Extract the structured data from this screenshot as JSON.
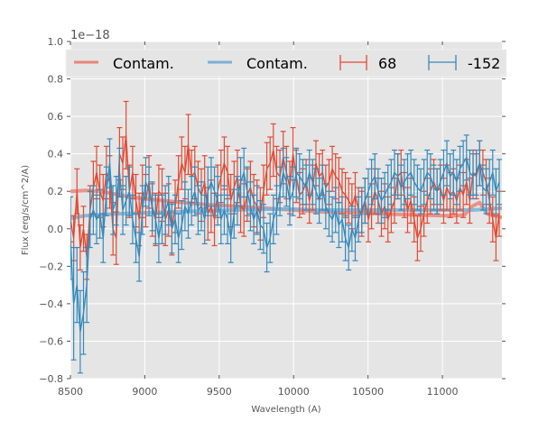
{
  "chart_data": {
    "type": "line",
    "title": "",
    "xlabel": "Wavelength (A)",
    "ylabel": "Flux (erg/s/cm^2/A)",
    "y_offset_label": "1e−18",
    "xlim": [
      8500,
      11400
    ],
    "ylim": [
      -0.8,
      1.0
    ],
    "x_ticks": [
      8500,
      9000,
      9500,
      10000,
      10500,
      11000
    ],
    "x_tick_labels": [
      "8500",
      "9000",
      "9500",
      "10000",
      "10500",
      "11000"
    ],
    "y_ticks": [
      -0.8,
      -0.6,
      -0.4,
      -0.2,
      0.0,
      0.2,
      0.4,
      0.6,
      0.8,
      1.0
    ],
    "y_tick_labels": [
      "−0.8",
      "−0.6",
      "−0.4",
      "−0.2",
      "0.0",
      "0.2",
      "0.4",
      "0.6",
      "0.8",
      "1.0"
    ],
    "grid": true,
    "legend_position": "top (full width, 4 columns)",
    "colors": {
      "red": "#E24A33",
      "blue": "#348ABD",
      "red_contam": "#E8857A",
      "blue_contam": "#7DB0D4",
      "background": "#E5E5E5",
      "grid": "#FFFFFF"
    },
    "legend": [
      {
        "label": "Contam.",
        "style": "line",
        "color": "#E8857A"
      },
      {
        "label": "Contam.",
        "style": "line",
        "color": "#7DB0D4"
      },
      {
        "label": "68",
        "style": "errorbar",
        "color": "#E24A33"
      },
      {
        "label": "-152",
        "style": "errorbar",
        "color": "#348ABD"
      }
    ],
    "series": [
      {
        "name": "Contam. (68)",
        "kind": "line",
        "color": "#E8857A",
        "x": [
          8500,
          8600,
          8700,
          8800,
          8900,
          9000,
          9200,
          9400,
          9600,
          9800,
          10000,
          10200,
          10400,
          10600,
          10800,
          11000,
          11100,
          11150,
          11200,
          11250,
          11300,
          11400
        ],
        "y": [
          0.2,
          0.205,
          0.2,
          0.185,
          0.17,
          0.16,
          0.145,
          0.13,
          0.12,
          0.11,
          0.1,
          0.09,
          0.085,
          0.08,
          0.075,
          0.07,
          0.07,
          0.075,
          0.12,
          0.14,
          0.08,
          0.06
        ]
      },
      {
        "name": "Contam. (-152)",
        "kind": "line",
        "color": "#7DB0D4",
        "x": [
          8500,
          8600,
          8700,
          8800,
          9000,
          9200,
          9400,
          9600,
          9800,
          10000,
          10200,
          10400,
          10600,
          10800,
          11000,
          11200,
          11400
        ],
        "y": [
          0.055,
          0.07,
          0.075,
          0.08,
          0.085,
          0.09,
          0.095,
          0.1,
          0.105,
          0.105,
          0.1,
          0.1,
          0.1,
          0.1,
          0.1,
          0.1,
          0.11
        ]
      },
      {
        "name": "68",
        "kind": "errorbar",
        "color": "#E24A33",
        "x": [
          8500,
          8522,
          8544,
          8566,
          8588,
          8610,
          8632,
          8654,
          8676,
          8698,
          8720,
          8742,
          8764,
          8786,
          8808,
          8830,
          8852,
          8874,
          8896,
          8918,
          8940,
          8962,
          8984,
          9006,
          9028,
          9050,
          9072,
          9094,
          9116,
          9138,
          9160,
          9182,
          9204,
          9226,
          9248,
          9270,
          9292,
          9314,
          9336,
          9358,
          9380,
          9402,
          9424,
          9446,
          9468,
          9490,
          9512,
          9534,
          9556,
          9578,
          9600,
          9622,
          9644,
          9666,
          9688,
          9710,
          9732,
          9754,
          9776,
          9798,
          9820,
          9842,
          9864,
          9886,
          9908,
          9930,
          9952,
          9974,
          9996,
          10018,
          10040,
          10062,
          10084,
          10106,
          10128,
          10150,
          10172,
          10194,
          10216,
          10238,
          10260,
          10282,
          10304,
          10326,
          10348,
          10370,
          10392,
          10414,
          10436,
          10458,
          10480,
          10502,
          10524,
          10546,
          10568,
          10590,
          10612,
          10634,
          10656,
          10678,
          10700,
          10722,
          10744,
          10766,
          10788,
          10810,
          10832,
          10854,
          10876,
          10898,
          10920,
          10942,
          10964,
          10986,
          11008,
          11030,
          11052,
          11074,
          11096,
          11118,
          11140,
          11162,
          11184,
          11206,
          11228,
          11250,
          11272,
          11294,
          11316,
          11338,
          11360,
          11382
        ],
        "y": [
          0.05,
          -0.05,
          0.2,
          -0.1,
          0.0,
          -0.15,
          0.1,
          0.22,
          0.3,
          0.2,
          0.15,
          0.3,
          0.25,
          0.0,
          -0.05,
          0.4,
          0.35,
          0.5,
          0.2,
          0.3,
          0.15,
          0.05,
          0.2,
          0.15,
          0.25,
          0.1,
          0.05,
          0.2,
          0.18,
          0.05,
          0.1,
          0.0,
          0.12,
          0.25,
          0.35,
          0.3,
          0.45,
          0.28,
          0.3,
          0.22,
          0.18,
          0.25,
          0.08,
          0.12,
          0.05,
          0.2,
          0.28,
          0.35,
          0.3,
          0.15,
          0.22,
          0.28,
          0.12,
          0.1,
          0.18,
          0.22,
          0.15,
          0.12,
          0.08,
          0.2,
          0.32,
          0.35,
          0.42,
          0.3,
          0.28,
          0.38,
          0.3,
          0.22,
          0.4,
          0.28,
          0.18,
          0.2,
          0.25,
          0.15,
          0.22,
          0.35,
          0.28,
          0.3,
          0.22,
          0.25,
          0.32,
          0.28,
          0.26,
          0.2,
          0.18,
          0.15,
          0.12,
          0.18,
          0.1,
          0.08,
          0.15,
          0.05,
          0.12,
          0.2,
          0.15,
          0.08,
          0.12,
          0.05,
          0.1,
          0.15,
          0.28,
          0.3,
          0.18,
          0.1,
          0.15,
          0.05,
          -0.05,
          0.0,
          0.08,
          0.15,
          0.2,
          0.25,
          0.2,
          0.22,
          0.15,
          0.22,
          0.18,
          0.2,
          0.15,
          0.22,
          0.18,
          0.25,
          0.15,
          0.3,
          0.28,
          0.35,
          0.3,
          0.25,
          0.15,
          0.05,
          -0.05,
          0.08
        ],
        "err": [
          0.12,
          0.12,
          0.12,
          0.12,
          0.12,
          0.12,
          0.13,
          0.14,
          0.14,
          0.14,
          0.14,
          0.14,
          0.14,
          0.14,
          0.14,
          0.14,
          0.14,
          0.18,
          0.14,
          0.14,
          0.14,
          0.14,
          0.14,
          0.14,
          0.14,
          0.14,
          0.14,
          0.14,
          0.14,
          0.14,
          0.14,
          0.14,
          0.14,
          0.14,
          0.14,
          0.14,
          0.16,
          0.14,
          0.14,
          0.14,
          0.14,
          0.14,
          0.14,
          0.14,
          0.14,
          0.14,
          0.14,
          0.14,
          0.14,
          0.14,
          0.14,
          0.14,
          0.14,
          0.14,
          0.14,
          0.14,
          0.14,
          0.14,
          0.14,
          0.14,
          0.14,
          0.14,
          0.14,
          0.14,
          0.14,
          0.14,
          0.14,
          0.14,
          0.14,
          0.14,
          0.12,
          0.12,
          0.12,
          0.12,
          0.12,
          0.12,
          0.12,
          0.12,
          0.12,
          0.12,
          0.12,
          0.12,
          0.12,
          0.12,
          0.12,
          0.12,
          0.12,
          0.12,
          0.12,
          0.12,
          0.12,
          0.12,
          0.12,
          0.12,
          0.12,
          0.12,
          0.12,
          0.12,
          0.12,
          0.12,
          0.12,
          0.12,
          0.12,
          0.12,
          0.12,
          0.12,
          0.12,
          0.12,
          0.12,
          0.12,
          0.12,
          0.12,
          0.12,
          0.12,
          0.12,
          0.12,
          0.12,
          0.12,
          0.12,
          0.12,
          0.12,
          0.12,
          0.12,
          0.12,
          0.12,
          0.12,
          0.12,
          0.12,
          0.12,
          0.12,
          0.12,
          0.12
        ]
      },
      {
        "name": "-152",
        "kind": "errorbar",
        "color": "#348ABD",
        "x": [
          8500,
          8522,
          8544,
          8566,
          8588,
          8610,
          8632,
          8654,
          8676,
          8698,
          8720,
          8742,
          8764,
          8786,
          8808,
          8830,
          8852,
          8874,
          8896,
          8918,
          8940,
          8962,
          8984,
          9006,
          9028,
          9050,
          9072,
          9094,
          9116,
          9138,
          9160,
          9182,
          9204,
          9226,
          9248,
          9270,
          9292,
          9314,
          9336,
          9358,
          9380,
          9402,
          9424,
          9446,
          9468,
          9490,
          9512,
          9534,
          9556,
          9578,
          9600,
          9622,
          9644,
          9666,
          9688,
          9710,
          9732,
          9754,
          9776,
          9798,
          9820,
          9842,
          9864,
          9886,
          9908,
          9930,
          9952,
          9974,
          9996,
          10018,
          10040,
          10062,
          10084,
          10106,
          10128,
          10150,
          10172,
          10194,
          10216,
          10238,
          10260,
          10282,
          10304,
          10326,
          10348,
          10370,
          10392,
          10414,
          10436,
          10458,
          10480,
          10502,
          10524,
          10546,
          10568,
          10590,
          10612,
          10634,
          10656,
          10678,
          10700,
          10722,
          10744,
          10766,
          10788,
          10810,
          10832,
          10854,
          10876,
          10898,
          10920,
          10942,
          10964,
          10986,
          11008,
          11030,
          11052,
          11074,
          11096,
          11118,
          11140,
          11162,
          11184,
          11206,
          11228,
          11250,
          11272,
          11294,
          11316,
          11338,
          11360,
          11382
        ],
        "y": [
          -0.05,
          -0.4,
          -0.3,
          -0.55,
          -0.45,
          -0.3,
          0.05,
          0.1,
          0.05,
          0.08,
          -0.05,
          0.2,
          0.35,
          0.1,
          0.15,
          0.3,
          0.1,
          0.15,
          0.2,
          0.05,
          -0.05,
          -0.15,
          0.1,
          0.25,
          0.2,
          0.12,
          0.05,
          -0.05,
          0.05,
          0.1,
          0.15,
          0.0,
          0.05,
          -0.05,
          0.02,
          0.12,
          0.08,
          0.15,
          0.2,
          0.1,
          0.12,
          0.05,
          0.2,
          0.25,
          0.2,
          0.15,
          0.05,
          0.1,
          0.05,
          -0.05,
          0.08,
          0.15,
          0.25,
          0.3,
          0.2,
          0.12,
          0.05,
          0.1,
          0.02,
          0.0,
          -0.1,
          -0.05,
          0.05,
          0.1,
          0.2,
          0.3,
          0.25,
          0.15,
          0.2,
          0.3,
          0.28,
          0.25,
          0.22,
          0.3,
          0.25,
          0.2,
          0.15,
          0.22,
          0.12,
          0.08,
          0.05,
          0.1,
          0.02,
          0.05,
          -0.05,
          -0.1,
          0.0,
          -0.05,
          0.05,
          0.1,
          0.15,
          0.2,
          0.25,
          0.28,
          0.2,
          0.15,
          0.18,
          0.22,
          0.25,
          0.3,
          0.28,
          0.22,
          0.25,
          0.28,
          0.3,
          0.25,
          0.22,
          0.2,
          0.25,
          0.3,
          0.28,
          0.22,
          0.2,
          0.25,
          0.3,
          0.35,
          0.28,
          0.3,
          0.25,
          0.32,
          0.35,
          0.38,
          0.3,
          0.28,
          0.3,
          0.35,
          0.22,
          0.2,
          0.25,
          0.3,
          0.2,
          0.25
        ],
        "err": [
          0.22,
          0.3,
          0.2,
          0.22,
          0.22,
          0.2,
          0.15,
          0.13,
          0.13,
          0.13,
          0.13,
          0.13,
          0.13,
          0.13,
          0.13,
          0.13,
          0.13,
          0.13,
          0.13,
          0.13,
          0.13,
          0.13,
          0.13,
          0.13,
          0.13,
          0.13,
          0.13,
          0.13,
          0.13,
          0.13,
          0.13,
          0.13,
          0.13,
          0.13,
          0.13,
          0.13,
          0.13,
          0.13,
          0.13,
          0.13,
          0.13,
          0.13,
          0.13,
          0.13,
          0.13,
          0.13,
          0.13,
          0.13,
          0.13,
          0.13,
          0.13,
          0.13,
          0.13,
          0.13,
          0.13,
          0.13,
          0.13,
          0.13,
          0.13,
          0.13,
          0.13,
          0.13,
          0.13,
          0.13,
          0.13,
          0.13,
          0.13,
          0.13,
          0.13,
          0.13,
          0.12,
          0.12,
          0.12,
          0.12,
          0.12,
          0.12,
          0.12,
          0.12,
          0.12,
          0.12,
          0.12,
          0.12,
          0.12,
          0.12,
          0.12,
          0.12,
          0.12,
          0.12,
          0.12,
          0.12,
          0.12,
          0.12,
          0.12,
          0.12,
          0.12,
          0.12,
          0.12,
          0.12,
          0.12,
          0.12,
          0.12,
          0.12,
          0.12,
          0.12,
          0.12,
          0.12,
          0.12,
          0.12,
          0.12,
          0.12,
          0.12,
          0.12,
          0.12,
          0.12,
          0.12,
          0.12,
          0.12,
          0.12,
          0.12,
          0.12,
          0.12,
          0.12,
          0.12,
          0.12,
          0.12,
          0.12,
          0.12,
          0.12,
          0.12,
          0.12,
          0.12,
          0.12
        ]
      }
    ]
  }
}
